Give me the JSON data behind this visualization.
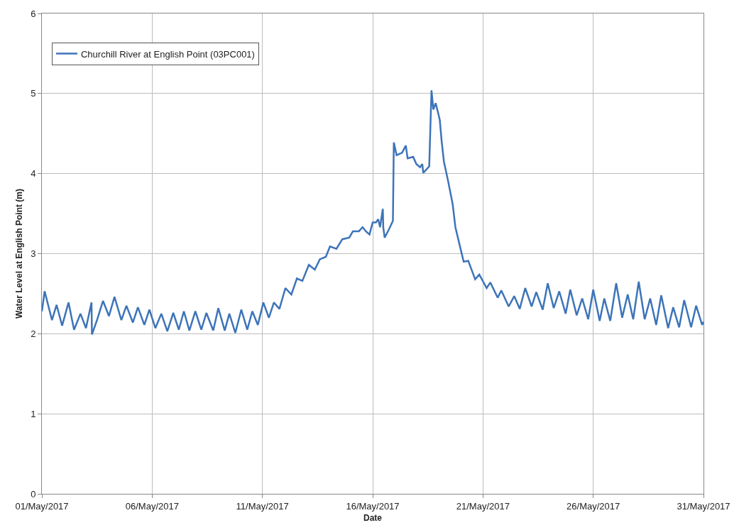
{
  "chart_data": {
    "type": "line",
    "xlabel": "Date",
    "ylabel": "Water Level at English Point (m)",
    "xlim": [
      "2017-05-01",
      "2017-05-31"
    ],
    "xticks": [
      {
        "value": "2017-05-01",
        "label": "01/May/2017"
      },
      {
        "value": "2017-05-06",
        "label": "06/May/2017"
      },
      {
        "value": "2017-05-11",
        "label": "11/May/2017"
      },
      {
        "value": "2017-05-16",
        "label": "16/May/2017"
      },
      {
        "value": "2017-05-21",
        "label": "21/May/2017"
      },
      {
        "value": "2017-05-26",
        "label": "26/May/2017"
      },
      {
        "value": "2017-05-31",
        "label": "31/May/2017"
      }
    ],
    "ylim": [
      0,
      6
    ],
    "yticks": [
      0,
      1,
      2,
      3,
      4,
      5,
      6
    ],
    "grid": true,
    "legend": "top left",
    "marker": "none",
    "line_style": "solid",
    "x": [
      "2017-05-01T00:00",
      "2017-05-01T03:00",
      "2017-05-01T11:00",
      "2017-05-01T16:00",
      "2017-05-01T22:00",
      "2017-05-02T05:00",
      "2017-05-02T11:00",
      "2017-05-02T18:00",
      "2017-05-03T00:00",
      "2017-05-03T06:00",
      "2017-05-03T06:30",
      "2017-05-03T12:00",
      "2017-05-03T18:30",
      "2017-05-04T01:00",
      "2017-05-04T07:00",
      "2017-05-04T14:30",
      "2017-05-04T20:00",
      "2017-05-05T03:00",
      "2017-05-05T08:30",
      "2017-05-05T15:30",
      "2017-05-05T21:00",
      "2017-05-06T03:30",
      "2017-05-06T10:00",
      "2017-05-06T16:30",
      "2017-05-06T23:00",
      "2017-05-07T05:00",
      "2017-05-07T10:30",
      "2017-05-07T16:30",
      "2017-05-07T23:00",
      "2017-05-08T05:30",
      "2017-05-08T11:00",
      "2017-05-08T18:30",
      "2017-05-09T00:00",
      "2017-05-09T07:00",
      "2017-05-09T12:00",
      "2017-05-09T18:30",
      "2017-05-10T01:00",
      "2017-05-10T07:30",
      "2017-05-10T13:00",
      "2017-05-10T19:00",
      "2017-05-11T01:00",
      "2017-05-11T07:00",
      "2017-05-11T12:30",
      "2017-05-11T18:30",
      "2017-05-12T01:00",
      "2017-05-12T07:30",
      "2017-05-12T13:30",
      "2017-05-12T19:30",
      "2017-05-13T02:30",
      "2017-05-13T09:00",
      "2017-05-13T14:30",
      "2017-05-13T21:00",
      "2017-05-14T01:30",
      "2017-05-14T08:30",
      "2017-05-14T15:00",
      "2017-05-14T22:30",
      "2017-05-15T02:30",
      "2017-05-15T09:00",
      "2017-05-15T13:00",
      "2017-05-15T16:30",
      "2017-05-15T20:30",
      "2017-05-16T00:00",
      "2017-05-16T03:30",
      "2017-05-16T06:00",
      "2017-05-16T08:00",
      "2017-05-16T11:00",
      "2017-05-16T11:30",
      "2017-05-16T13:00",
      "2017-05-16T18:00",
      "2017-05-16T22:00",
      "2017-05-16T23:00",
      "2017-05-17T02:00",
      "2017-05-17T08:00",
      "2017-05-17T12:00",
      "2017-05-17T14:00",
      "2017-05-17T20:00",
      "2017-05-17T23:30",
      "2017-05-18T03:30",
      "2017-05-18T06:00",
      "2017-05-18T07:00",
      "2017-05-18T13:30",
      "2017-05-18T16:00",
      "2017-05-18T18:00",
      "2017-05-18T20:30",
      "2017-05-18T22:30",
      "2017-05-19T01:00",
      "2017-05-19T03:00",
      "2017-05-19T05:30",
      "2017-05-19T10:00",
      "2017-05-19T15:00",
      "2017-05-19T18:00",
      "2017-05-19T23:00",
      "2017-05-20T03:00",
      "2017-05-20T08:00",
      "2017-05-20T15:30",
      "2017-05-20T20:00",
      "2017-05-21T04:00",
      "2017-05-21T08:00",
      "2017-05-21T16:00",
      "2017-05-21T20:00",
      "2017-05-22T04:00",
      "2017-05-22T10:00",
      "2017-05-22T16:00",
      "2017-05-22T22:00",
      "2017-05-23T05:00",
      "2017-05-23T10:00",
      "2017-05-23T17:00",
      "2017-05-23T22:30",
      "2017-05-24T05:00",
      "2017-05-24T11:00",
      "2017-05-24T18:00",
      "2017-05-24T23:00",
      "2017-05-25T06:00",
      "2017-05-25T12:00",
      "2017-05-25T18:30",
      "2017-05-26T00:00",
      "2017-05-26T07:00",
      "2017-05-26T12:00",
      "2017-05-26T18:30",
      "2017-05-27T01:00",
      "2017-05-27T07:30",
      "2017-05-27T13:30",
      "2017-05-27T19:30",
      "2017-05-28T01:30",
      "2017-05-28T08:00",
      "2017-05-28T14:00",
      "2017-05-28T20:30",
      "2017-05-29T02:00",
      "2017-05-29T09:30",
      "2017-05-29T15:00",
      "2017-05-29T21:30",
      "2017-05-30T03:00",
      "2017-05-30T10:30",
      "2017-05-30T16:00",
      "2017-05-30T22:30",
      "2017-05-31T00:00"
    ],
    "series": [
      {
        "name": "Churchill River at English Point (03PC001)",
        "color": "#3d74b9",
        "values": [
          2.28,
          2.53,
          2.17,
          2.36,
          2.1,
          2.39,
          2.05,
          2.25,
          2.07,
          2.39,
          1.99,
          2.17,
          2.41,
          2.22,
          2.46,
          2.17,
          2.35,
          2.14,
          2.33,
          2.11,
          2.3,
          2.07,
          2.25,
          2.03,
          2.26,
          2.05,
          2.28,
          2.04,
          2.28,
          2.05,
          2.26,
          2.04,
          2.32,
          2.04,
          2.25,
          2.01,
          2.3,
          2.05,
          2.28,
          2.11,
          2.39,
          2.2,
          2.39,
          2.31,
          2.57,
          2.49,
          2.69,
          2.66,
          2.86,
          2.8,
          2.93,
          2.96,
          3.09,
          3.06,
          3.18,
          3.2,
          3.28,
          3.28,
          3.33,
          3.28,
          3.24,
          3.39,
          3.39,
          3.43,
          3.33,
          3.56,
          3.33,
          3.2,
          3.31,
          3.41,
          4.39,
          4.23,
          4.26,
          4.35,
          4.19,
          4.21,
          4.12,
          4.08,
          4.12,
          4.01,
          4.09,
          5.04,
          4.8,
          4.88,
          4.79,
          4.67,
          4.41,
          4.15,
          3.91,
          3.62,
          3.33,
          3.09,
          2.9,
          2.91,
          2.68,
          2.74,
          2.57,
          2.64,
          2.45,
          2.54,
          2.34,
          2.47,
          2.31,
          2.57,
          2.34,
          2.52,
          2.3,
          2.63,
          2.32,
          2.53,
          2.25,
          2.55,
          2.23,
          2.44,
          2.18,
          2.55,
          2.16,
          2.44,
          2.16,
          2.63,
          2.2,
          2.49,
          2.18,
          2.65,
          2.18,
          2.44,
          2.11,
          2.48,
          2.07,
          2.33,
          2.08,
          2.42,
          2.08,
          2.35,
          2.11,
          2.15
        ]
      }
    ]
  }
}
